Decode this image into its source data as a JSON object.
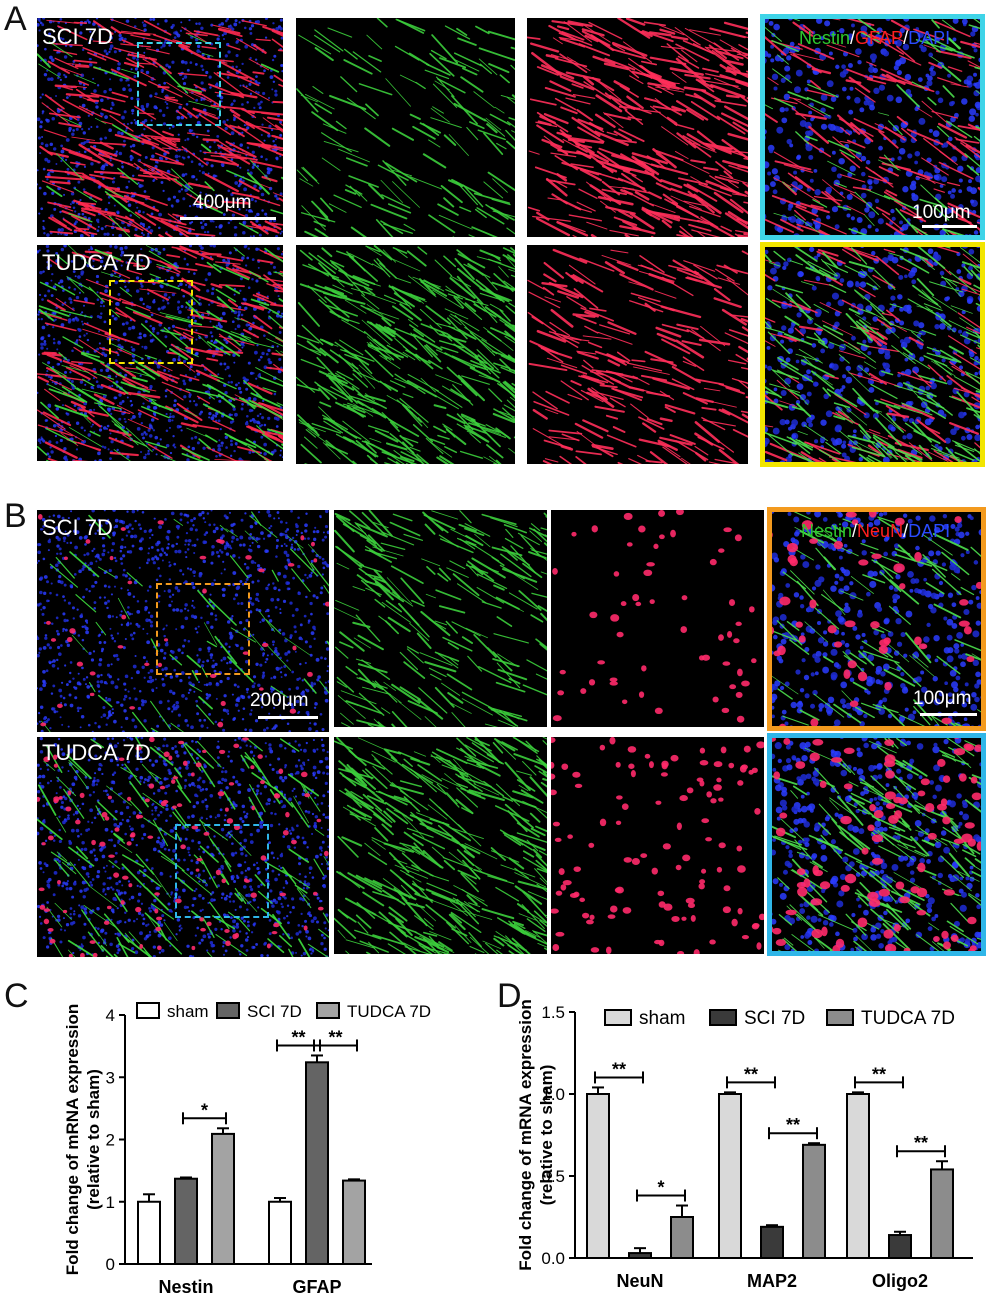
{
  "panels": {
    "a": "A",
    "b": "B",
    "c": "C",
    "d": "D"
  },
  "figA": {
    "row1_label": "SCI 7D",
    "row2_label": "TUDCA 7D",
    "scale_overview": "400μm",
    "scale_zoom": "100μm",
    "stain": {
      "p1": "Nestin",
      "s1": "/",
      "p2": "GFAP",
      "s2": "/",
      "p3": "DAPI"
    },
    "colors": {
      "row1_frame": "#3fd4e8",
      "row2_frame": "#f2e500"
    }
  },
  "figB": {
    "row1_label": "SCI 7D",
    "row2_label": "TUDCA 7D",
    "scale_overview": "200μm",
    "scale_zoom": "100μm",
    "stain": {
      "p1": "Nestin",
      "s1": "/",
      "p2": "NeuN",
      "s2": "/",
      "p3": "DAPI"
    },
    "colors": {
      "row1_frame": "#f39a1e",
      "row2_frame": "#2fb6e8"
    }
  },
  "chart_data": [
    {
      "type": "bar",
      "panel": "C",
      "ylabel": "Fold change of mRNA expression (relative to sham)",
      "ylabel_line1": "Fold change of mRNA expression",
      "ylabel_line2": "(relative to sham)",
      "categories": [
        "Nestin",
        "GFAP"
      ],
      "ylim": [
        0,
        4
      ],
      "yticks": [
        "0",
        "1",
        "2",
        "3",
        "4"
      ],
      "series": [
        {
          "name": "sham",
          "values": [
            1.0,
            1.0
          ],
          "errors": [
            0.12,
            0.06
          ],
          "color": "#ffffff"
        },
        {
          "name": "SCI 7D",
          "values": [
            1.37,
            3.24
          ],
          "errors": [
            0.02,
            0.11
          ],
          "color": "#646464"
        },
        {
          "name": "TUDCA 7D",
          "values": [
            2.09,
            1.34
          ],
          "errors": [
            0.09,
            0.02
          ],
          "color": "#a3a3a3"
        }
      ],
      "significance": [
        {
          "category": 0,
          "from": 1,
          "to": 2,
          "label": "*"
        },
        {
          "category": 1,
          "from": 0,
          "to": 1,
          "label": "**"
        },
        {
          "category": 1,
          "from": 1,
          "to": 2,
          "label": "**"
        }
      ],
      "legend": "top"
    },
    {
      "type": "bar",
      "panel": "D",
      "ylabel": "Fold change of mRNA expression (relative to sham)",
      "ylabel_line1": "Fold change of mRNA expression",
      "ylabel_line2": "(relative to sham)",
      "categories": [
        "NeuN",
        "MAP2",
        "Oligo2"
      ],
      "ylim": [
        0,
        1.5
      ],
      "yticks": [
        "0.0",
        "0.5",
        "1.0",
        "1.5"
      ],
      "series": [
        {
          "name": "sham",
          "values": [
            1.0,
            1.0,
            1.0
          ],
          "errors": [
            0.04,
            0.01,
            0.01
          ],
          "color": "#d9d9d9"
        },
        {
          "name": "SCI 7D",
          "values": [
            0.03,
            0.19,
            0.14
          ],
          "errors": [
            0.03,
            0.01,
            0.02
          ],
          "color": "#3a3a3a"
        },
        {
          "name": "TUDCA 7D",
          "values": [
            0.25,
            0.69,
            0.54
          ],
          "errors": [
            0.07,
            0.01,
            0.05
          ],
          "color": "#8c8c8c"
        }
      ],
      "significance": [
        {
          "category": 0,
          "from": 0,
          "to": 1,
          "label": "**"
        },
        {
          "category": 0,
          "from": 1,
          "to": 2,
          "label": "*"
        },
        {
          "category": 1,
          "from": 0,
          "to": 1,
          "label": "**"
        },
        {
          "category": 1,
          "from": 1,
          "to": 2,
          "label": "**"
        },
        {
          "category": 2,
          "from": 0,
          "to": 1,
          "label": "**"
        },
        {
          "category": 2,
          "from": 1,
          "to": 2,
          "label": "**"
        }
      ],
      "legend": "top"
    }
  ]
}
